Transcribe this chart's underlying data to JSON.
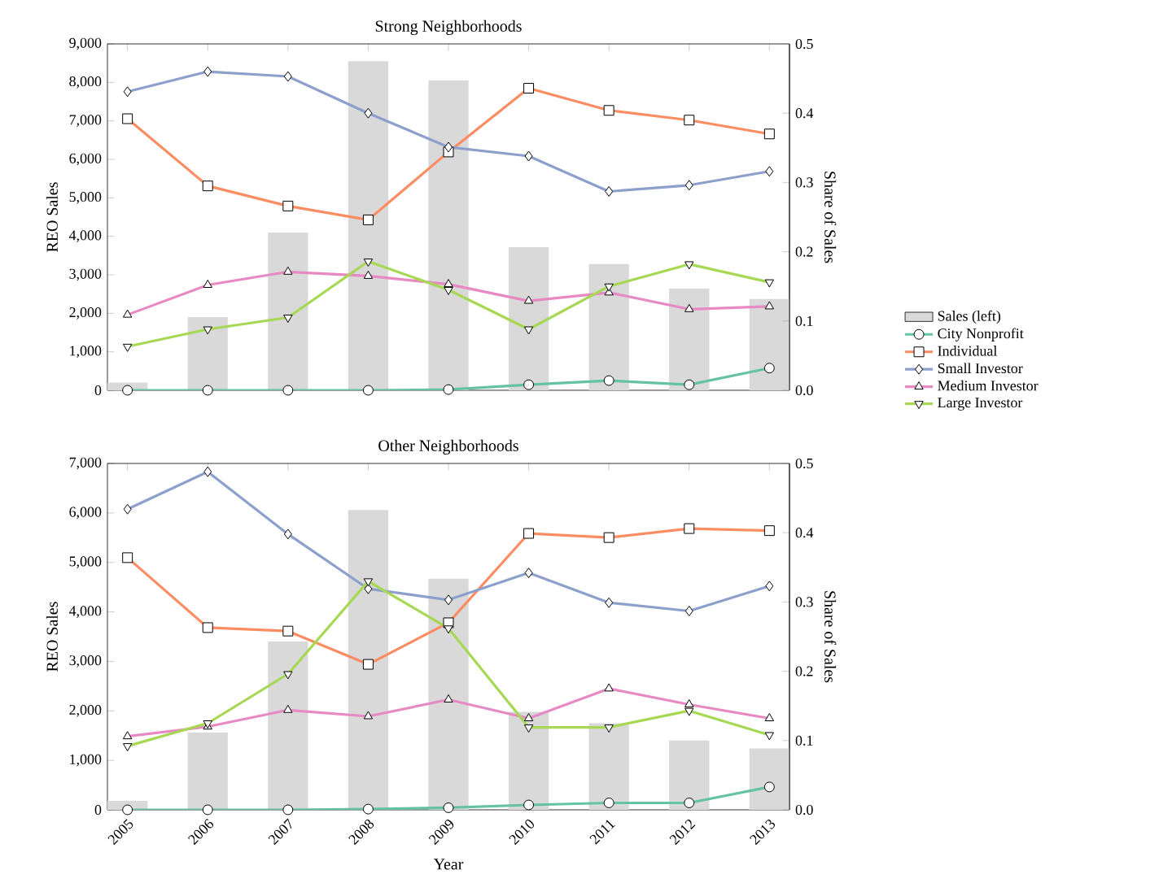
{
  "chart_data": [
    {
      "type": "line",
      "title": "Strong Neighborhoods",
      "ylabel": "REO Sales",
      "y2label": "Share of Sales",
      "categories": [
        "2005",
        "2006",
        "2007",
        "2008",
        "2009",
        "2010",
        "2011",
        "2012",
        "2013"
      ],
      "series": [
        {
          "name": "Sales (left)",
          "type": "bar",
          "axis": "y",
          "color": "#d9d9d9",
          "values": [
            200,
            1900,
            4100,
            8550,
            8050,
            3720,
            3280,
            2640,
            2370
          ]
        },
        {
          "name": "City Nonprofit",
          "axis": "y2",
          "marker": "circle",
          "color": "#66c2a5",
          "values": [
            0,
            0,
            0,
            0,
            0.001,
            0.008,
            0.014,
            0.008,
            0.032
          ]
        },
        {
          "name": "Individual",
          "axis": "y2",
          "marker": "square",
          "color": "#fc8d62",
          "values": [
            0.392,
            0.295,
            0.266,
            0.246,
            0.344,
            0.436,
            0.404,
            0.39,
            0.37
          ]
        },
        {
          "name": "Small Investor",
          "axis": "y2",
          "marker": "diamond",
          "color": "#8da0cb",
          "values": [
            0.431,
            0.46,
            0.453,
            0.4,
            0.351,
            0.338,
            0.287,
            0.296,
            0.316
          ]
        },
        {
          "name": "Medium Investor",
          "axis": "y2",
          "marker": "triangle",
          "color": "#e78ac3",
          "values": [
            0.109,
            0.152,
            0.171,
            0.165,
            0.153,
            0.129,
            0.141,
            0.117,
            0.121
          ]
        },
        {
          "name": "Large Investor",
          "axis": "y2",
          "marker": "triangle down",
          "color": "#a6d854",
          "values": [
            0.063,
            0.088,
            0.105,
            0.186,
            0.145,
            0.088,
            0.15,
            0.182,
            0.156
          ]
        }
      ],
      "ylim": [
        0,
        9000
      ],
      "yticks": [
        0,
        {
          "value": 1000,
          "label": "1,000"
        },
        {
          "value": 2000,
          "label": "2,000"
        },
        {
          "value": 3000,
          "label": "3,000"
        },
        {
          "value": 4000,
          "label": "4,000"
        },
        {
          "value": 5000,
          "label": "5,000"
        },
        {
          "value": 6000,
          "label": "6,000"
        },
        {
          "value": 7000,
          "label": "7,000"
        },
        {
          "value": 8000,
          "label": "8,000"
        },
        {
          "value": 9000,
          "label": "9,000"
        }
      ],
      "y2lim": [
        0,
        0.5
      ],
      "y2ticks": [
        {
          "value": 0,
          "label": "0.0"
        },
        0.1,
        0.2,
        0.3,
        0.4,
        0.5
      ],
      "tick_labels": "y",
      "legend": "right",
      "grid": false,
      "line_style": "solid"
    },
    {
      "type": "line",
      "title": "Other Neighborhoods",
      "xlabel": "Year",
      "ylabel": "REO Sales",
      "y2label": "Share of Sales",
      "categories": [
        "2005",
        "2006",
        "2007",
        "2008",
        "2009",
        "2010",
        "2011",
        "2012",
        "2013"
      ],
      "series": [
        {
          "type": "bar",
          "axis": "y",
          "color": "#d9d9d9",
          "values": [
            180,
            1560,
            3400,
            6060,
            4670,
            1980,
            1750,
            1400,
            1240
          ]
        },
        {
          "axis": "y2",
          "marker": "circle",
          "color": "#66c2a5",
          "values": [
            0,
            0,
            0,
            0.001,
            0.003,
            0.007,
            0.01,
            0.01,
            0.033
          ]
        },
        {
          "axis": "y2",
          "marker": "square",
          "color": "#fc8d62",
          "values": [
            0.364,
            0.263,
            0.258,
            0.21,
            0.27,
            0.399,
            0.393,
            0.406,
            0.403
          ]
        },
        {
          "axis": "y2",
          "marker": "diamond",
          "color": "#8da0cb",
          "values": [
            0.434,
            0.488,
            0.398,
            0.319,
            0.303,
            0.342,
            0.299,
            0.287,
            0.323
          ]
        },
        {
          "axis": "y2",
          "marker": "triangle",
          "color": "#e78ac3",
          "values": [
            0.106,
            0.12,
            0.144,
            0.135,
            0.159,
            0.132,
            0.175,
            0.152,
            0.132
          ]
        },
        {
          "axis": "y2",
          "marker": "triangle down",
          "color": "#a6d854",
          "values": [
            0.092,
            0.125,
            0.196,
            0.33,
            0.262,
            0.119,
            0.119,
            0.143,
            0.108
          ]
        }
      ],
      "ylim": [
        0,
        7000
      ],
      "yticks": [
        0,
        {
          "value": 1000,
          "label": "1,000"
        },
        {
          "value": 2000,
          "label": "2,000"
        },
        {
          "value": 3000,
          "label": "3,000"
        },
        {
          "value": 4000,
          "label": "4,000"
        },
        {
          "value": 5000,
          "label": "5,000"
        },
        {
          "value": 6000,
          "label": "6,000"
        },
        {
          "value": 7000,
          "label": "7,000"
        }
      ],
      "y2lim": [
        0,
        0.5
      ],
      "y2ticks": [
        {
          "value": 0,
          "label": "0.0"
        },
        0.1,
        0.2,
        0.3,
        0.4,
        0.5
      ],
      "grid": false,
      "line_style": "solid"
    }
  ]
}
